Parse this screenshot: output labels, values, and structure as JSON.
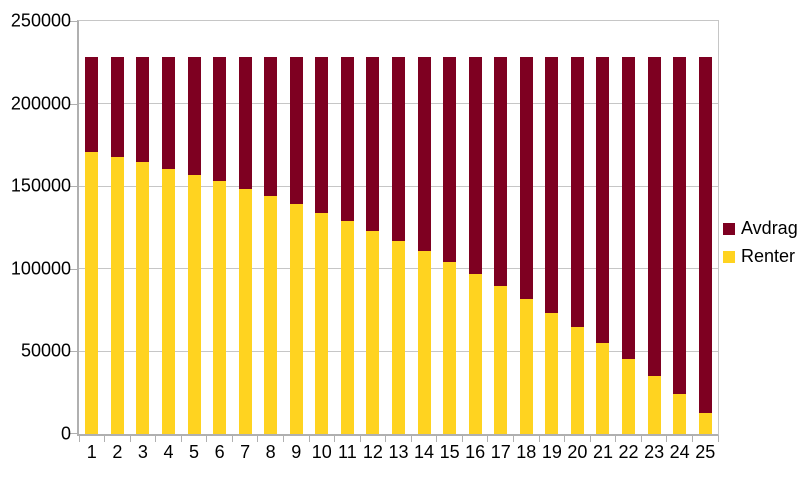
{
  "chart_data": {
    "type": "bar",
    "stacked": true,
    "title": "",
    "xlabel": "",
    "ylabel": "",
    "grid": true,
    "legend_position": "right",
    "ylim": [
      0,
      250000
    ],
    "ytick_step": 50000,
    "ytick_labels": [
      "0",
      "50000",
      "100000",
      "150000",
      "200000",
      "250000"
    ],
    "categories": [
      "1",
      "2",
      "3",
      "4",
      "5",
      "6",
      "7",
      "8",
      "9",
      "10",
      "11",
      "12",
      "13",
      "14",
      "15",
      "16",
      "17",
      "18",
      "19",
      "20",
      "21",
      "22",
      "23",
      "24",
      "25"
    ],
    "bar_total_constant": 228500,
    "series": [
      {
        "name": "Avdrag",
        "color": "#7E0021",
        "values": [
          57500,
          61000,
          64000,
          68000,
          71500,
          75500,
          80000,
          84500,
          89500,
          94500,
          99500,
          105500,
          111500,
          117500,
          124500,
          131500,
          139000,
          147000,
          155000,
          164000,
          173500,
          183000,
          193500,
          204500,
          216000
        ]
      },
      {
        "name": "Renter",
        "color": "#FFD320",
        "values": [
          171000,
          167500,
          164500,
          160500,
          157000,
          153000,
          148500,
          144000,
          139000,
          134000,
          129000,
          123000,
          117000,
          111000,
          104000,
          97000,
          89500,
          81500,
          73500,
          64500,
          55000,
          45500,
          35000,
          24000,
          12500
        ]
      }
    ]
  },
  "colors": {
    "avdrag": "#7E0021",
    "renter": "#FFD320",
    "gridline": "#c6c6c6",
    "axis": "#b0b0b0",
    "text": "#000000",
    "background": "#ffffff"
  }
}
